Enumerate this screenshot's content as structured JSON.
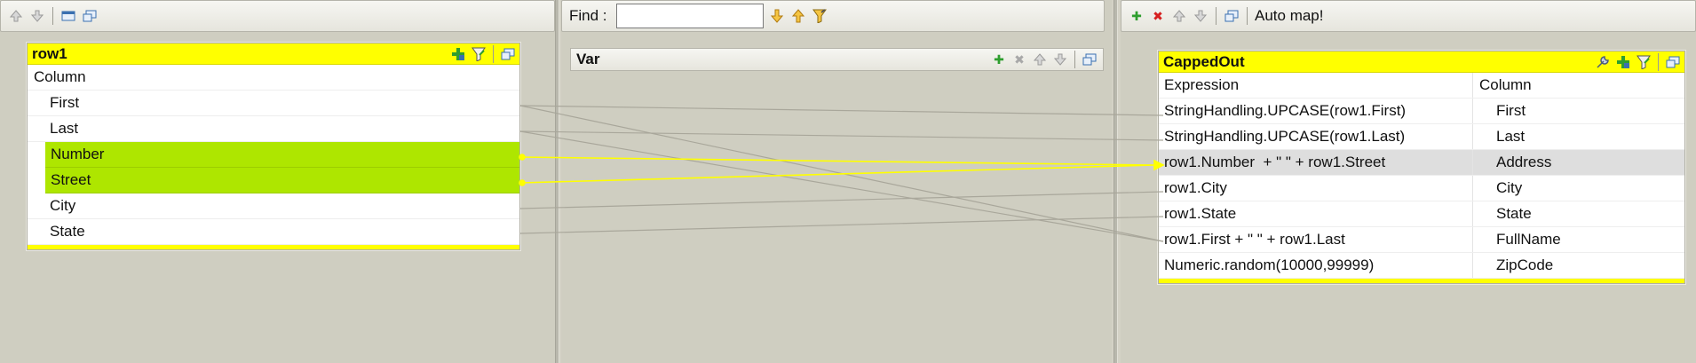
{
  "colors": {
    "table_header": "#ffff00",
    "highlight": "#aee600",
    "link_active": "#ffff00",
    "link_inactive": "#a9a79b",
    "add": "#2e9e2e",
    "remove": "#d62020"
  },
  "left_panel": {
    "toolbar": {
      "icons": [
        "arrow-up-icon",
        "arrow-down-icon",
        "minimize-icon",
        "window-icon"
      ]
    },
    "table": {
      "name": "row1",
      "header_icons": [
        "add-filter-icon",
        "expression-filter-icon",
        "window-icon"
      ],
      "column_header": "Column",
      "columns": [
        "First",
        "Last",
        "Number",
        "Street",
        "City",
        "State"
      ]
    }
  },
  "middle_panel": {
    "find": {
      "label": "Find :",
      "value": ""
    },
    "nav_icons": [
      "next-down-icon",
      "prev-up-icon",
      "highlight-filter-icon"
    ],
    "var_table": {
      "name": "Var",
      "icons": [
        "add-icon",
        "remove-icon",
        "move-up-icon",
        "move-down-icon",
        "window-icon"
      ]
    }
  },
  "right_panel": {
    "toolbar": {
      "icons": [
        "add-icon",
        "remove-icon",
        "move-up-icon",
        "move-down-icon",
        "window-icon"
      ],
      "auto_map_label": "Auto map!"
    },
    "table": {
      "name": "CappedOut",
      "header_icons": [
        "wrench-icon",
        "add-filter-icon",
        "expression-filter-icon",
        "window-icon"
      ],
      "expression_header": "Expression",
      "column_header": "Column",
      "rows": [
        {
          "expression": "StringHandling.UPCASE(row1.First)",
          "column": "First"
        },
        {
          "expression": "StringHandling.UPCASE(row1.Last)",
          "column": "Last"
        },
        {
          "expression": "row1.Number  + \" \" + row1.Street",
          "column": "Address"
        },
        {
          "expression": "row1.City",
          "column": "City"
        },
        {
          "expression": "row1.State",
          "column": "State"
        },
        {
          "expression": "row1.First + \" \" + row1.Last",
          "column": "FullName"
        },
        {
          "expression": "Numeric.random(10000,99999)",
          "column": "ZipCode"
        }
      ]
    }
  }
}
